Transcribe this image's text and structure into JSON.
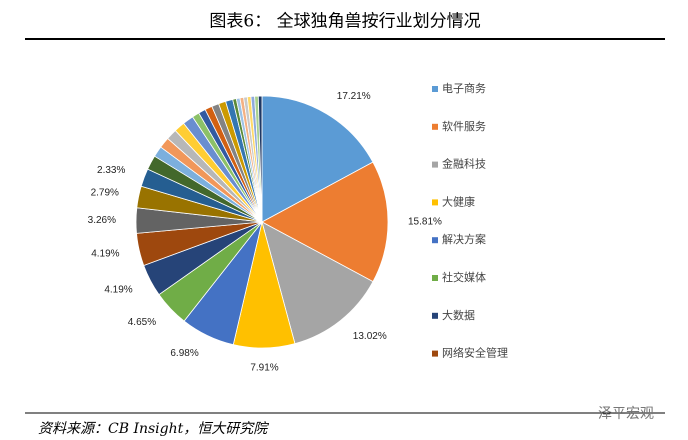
{
  "chart_data": {
    "type": "pie",
    "title": "图表6：  全球独角兽按行业划分情况",
    "categories": [
      "电子商务",
      "软件服务",
      "金融科技",
      "大健康",
      "解决方案",
      "社交媒体",
      "大数据",
      "网络安全管理",
      null,
      null,
      null,
      null,
      null,
      null,
      null,
      null,
      null,
      null,
      null,
      null,
      null,
      null,
      null,
      null,
      null,
      null,
      null,
      null,
      null,
      null,
      null
    ],
    "values": [
      17.21,
      15.81,
      13.02,
      7.91,
      6.98,
      4.65,
      4.19,
      4.19,
      3.26,
      2.79,
      2.33,
      1.86,
      1.4,
      1.4,
      1.4,
      1.4,
      1.4,
      0.93,
      0.93,
      0.93,
      0.93,
      0.93,
      0.93,
      0.47,
      0.47,
      0.47,
      0.47,
      0.47,
      0.47,
      0.47,
      0.47
    ],
    "value_labels": [
      "17.21%",
      "15.81%",
      "13.02%",
      "7.91%",
      "6.98%",
      "4.65%",
      "4.19%",
      "4.19%",
      "3.26%",
      "2.79%",
      "2.33%",
      null,
      null,
      null,
      null,
      null,
      null,
      null,
      null,
      null,
      null,
      null,
      null,
      null,
      null,
      null,
      null,
      null,
      null,
      null,
      null
    ],
    "colors": [
      "#5b9bd5",
      "#ed7d31",
      "#a5a5a5",
      "#ffc000",
      "#4472c4",
      "#70ad47",
      "#264478",
      "#9e480e",
      "#636363",
      "#997300",
      "#255e91",
      "#43682b",
      "#7cafdd",
      "#f1975a",
      "#b7b7b7",
      "#ffcd33",
      "#698ed0",
      "#8cc168",
      "#335aa1",
      "#d26012",
      "#838383",
      "#cc9a00",
      "#3476b1",
      "#5a8a39",
      "#9dc3e6",
      "#f4b183",
      "#c9c9c9",
      "#ffd966",
      "#8faadc",
      "#a9d18e",
      "#1f3864"
    ],
    "source": "资料来源：CB Insight，恒大研究院",
    "watermark": "泽平宏观"
  }
}
